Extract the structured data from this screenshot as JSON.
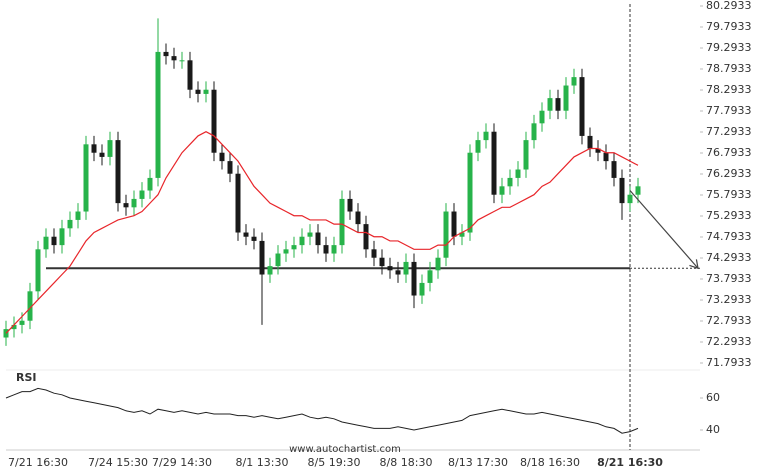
{
  "chart_data": {
    "type": "candlestick",
    "categories": [
      null,
      null,
      null,
      null,
      "7/21 16:30",
      null,
      null,
      null,
      null,
      null,
      null,
      null,
      null,
      null,
      "7/24 15:30",
      null,
      null,
      null,
      null,
      null,
      null,
      null,
      "7/29 14:30",
      null,
      null,
      null,
      null,
      null,
      null,
      null,
      null,
      null,
      "8/1 13:30",
      null,
      null,
      null,
      null,
      null,
      null,
      null,
      null,
      "8/5 19:30",
      null,
      null,
      null,
      null,
      null,
      null,
      null,
      null,
      "8/8 18:30",
      null,
      null,
      null,
      null,
      null,
      null,
      null,
      null,
      "8/13 17:30",
      null,
      null,
      null,
      null,
      null,
      null,
      null,
      null,
      "8/18 16:30",
      null,
      null,
      null,
      null,
      null,
      null,
      null,
      null,
      null,
      "8/21 16:30",
      null
    ],
    "open": [
      72.4,
      72.6,
      72.7,
      72.8,
      73.5,
      74.5,
      74.8,
      74.6,
      75.0,
      75.2,
      75.4,
      77.0,
      76.8,
      76.7,
      77.1,
      75.6,
      75.5,
      75.7,
      75.9,
      76.2,
      79.2,
      79.1,
      79.0,
      79.0,
      78.3,
      78.2,
      78.3,
      76.8,
      76.6,
      76.3,
      74.9,
      74.8,
      74.7,
      73.9,
      74.1,
      74.4,
      74.5,
      74.6,
      74.8,
      74.9,
      74.6,
      74.4,
      74.6,
      75.7,
      75.4,
      75.1,
      74.5,
      74.3,
      74.1,
      74.0,
      73.9,
      74.2,
      73.4,
      73.7,
      74.0,
      74.3,
      75.4,
      74.8,
      74.9,
      76.8,
      77.1,
      77.3,
      75.8,
      76.0,
      76.2,
      76.4,
      77.1,
      77.5,
      77.8,
      78.1,
      77.8,
      78.4,
      78.6,
      77.2,
      76.9,
      76.8,
      76.6,
      76.2,
      75.6,
      75.8
    ],
    "high": [
      72.8,
      72.9,
      73.0,
      73.7,
      74.7,
      75.0,
      75.0,
      75.2,
      75.4,
      75.6,
      77.2,
      77.2,
      77.0,
      77.3,
      77.3,
      75.8,
      75.9,
      76.1,
      76.4,
      80.0,
      79.4,
      79.3,
      79.2,
      79.2,
      78.5,
      78.5,
      78.5,
      77.0,
      76.8,
      76.5,
      75.1,
      75.0,
      74.9,
      74.3,
      74.6,
      74.7,
      74.8,
      75.0,
      75.1,
      75.1,
      74.8,
      74.8,
      75.9,
      75.9,
      75.6,
      75.3,
      74.7,
      74.5,
      74.3,
      74.2,
      74.4,
      74.4,
      73.9,
      74.2,
      74.5,
      75.6,
      75.6,
      75.1,
      77.0,
      77.3,
      77.5,
      77.5,
      76.2,
      76.4,
      76.6,
      77.3,
      77.7,
      78.0,
      78.3,
      78.3,
      78.6,
      78.8,
      78.8,
      77.4,
      77.1,
      77.0,
      76.8,
      76.4,
      76.0,
      76.2
    ],
    "low": [
      72.2,
      72.4,
      72.5,
      72.6,
      73.3,
      74.3,
      74.4,
      74.4,
      74.8,
      75.0,
      75.2,
      76.6,
      76.5,
      76.5,
      75.4,
      75.3,
      75.3,
      75.5,
      75.7,
      76.0,
      78.9,
      78.8,
      78.8,
      78.1,
      78.0,
      78.0,
      76.6,
      76.4,
      76.1,
      74.7,
      74.6,
      74.5,
      72.7,
      73.7,
      73.9,
      74.2,
      74.3,
      74.4,
      74.6,
      74.4,
      74.2,
      74.2,
      74.4,
      75.2,
      74.9,
      74.3,
      74.1,
      73.9,
      73.8,
      73.7,
      73.7,
      73.1,
      73.2,
      73.5,
      73.8,
      74.1,
      74.6,
      74.6,
      74.7,
      76.6,
      76.9,
      75.6,
      75.6,
      75.8,
      76.0,
      76.2,
      76.9,
      77.3,
      77.6,
      77.6,
      77.6,
      78.2,
      77.0,
      76.7,
      76.6,
      76.4,
      76.0,
      75.2,
      75.4,
      75.6
    ],
    "close": [
      72.6,
      72.7,
      72.8,
      73.5,
      74.5,
      74.8,
      74.6,
      75.0,
      75.2,
      75.4,
      77.0,
      76.8,
      76.7,
      77.1,
      75.6,
      75.5,
      75.7,
      75.9,
      76.2,
      79.2,
      79.1,
      79.0,
      79.0,
      78.3,
      78.2,
      78.3,
      76.8,
      76.6,
      76.3,
      74.9,
      74.8,
      74.7,
      73.9,
      74.1,
      74.4,
      74.5,
      74.6,
      74.8,
      74.9,
      74.6,
      74.4,
      74.6,
      75.7,
      75.4,
      75.1,
      74.5,
      74.3,
      74.1,
      74.0,
      73.9,
      74.2,
      73.4,
      73.7,
      74.0,
      74.3,
      75.4,
      74.8,
      74.9,
      76.8,
      77.1,
      77.3,
      75.8,
      76.0,
      76.2,
      76.4,
      77.1,
      77.5,
      77.8,
      78.1,
      77.8,
      78.4,
      78.6,
      77.2,
      76.9,
      76.8,
      76.6,
      76.2,
      75.6,
      75.8,
      76.0
    ],
    "up_color": "#27b34a",
    "down_color": "#1a1a1a",
    "ylim": [
      71.7933,
      80.2933
    ],
    "yticks": [
      71.7933,
      72.2933,
      72.7933,
      73.2933,
      73.7933,
      74.2933,
      74.7933,
      75.2933,
      75.7933,
      76.2933,
      76.7933,
      77.2933,
      77.7933,
      78.2933,
      78.7933,
      79.2933,
      79.7933,
      80.2933
    ],
    "ma": {
      "color": "#e8262b",
      "values": [
        72.5,
        72.7,
        72.9,
        73.1,
        73.3,
        73.5,
        73.7,
        73.9,
        74.1,
        74.4,
        74.7,
        74.9,
        75.0,
        75.1,
        75.2,
        75.25,
        75.3,
        75.4,
        75.6,
        75.8,
        76.2,
        76.5,
        76.8,
        77.0,
        77.2,
        77.3,
        77.2,
        77.0,
        76.8,
        76.6,
        76.3,
        76.0,
        75.8,
        75.6,
        75.5,
        75.4,
        75.3,
        75.3,
        75.2,
        75.2,
        75.2,
        75.1,
        75.1,
        75.0,
        74.9,
        74.9,
        74.8,
        74.8,
        74.7,
        74.7,
        74.6,
        74.5,
        74.5,
        74.5,
        74.6,
        74.6,
        74.8,
        74.9,
        75.0,
        75.2,
        75.3,
        75.4,
        75.5,
        75.5,
        75.6,
        75.7,
        75.8,
        76.0,
        76.1,
        76.3,
        76.5,
        76.7,
        76.8,
        76.9,
        76.9,
        76.8,
        76.8,
        76.7,
        76.6,
        76.5
      ]
    },
    "support_level": 74.05,
    "forecast": {
      "from": 75.9,
      "to": 74.05
    },
    "rsi": {
      "label": "RSI",
      "color": "#222",
      "values": [
        60,
        62,
        64,
        64,
        66,
        65,
        63,
        62,
        60,
        59,
        58,
        57,
        56,
        55,
        54,
        52,
        51,
        52,
        50,
        53,
        52,
        51,
        52,
        51,
        50,
        51,
        50,
        50,
        50,
        49,
        49,
        48,
        49,
        48,
        47,
        48,
        49,
        50,
        48,
        47,
        48,
        47,
        45,
        44,
        43,
        42,
        41,
        41,
        41,
        42,
        41,
        40,
        41,
        42,
        43,
        44,
        45,
        46,
        49,
        50,
        51,
        52,
        53,
        52,
        51,
        50,
        50,
        51,
        50,
        49,
        48,
        47,
        46,
        45,
        44,
        42,
        41,
        38,
        39,
        41
      ],
      "ylim": [
        27.5,
        77.5
      ],
      "yticks": [
        40,
        60
      ]
    },
    "footer": "www.autochartist.com"
  }
}
